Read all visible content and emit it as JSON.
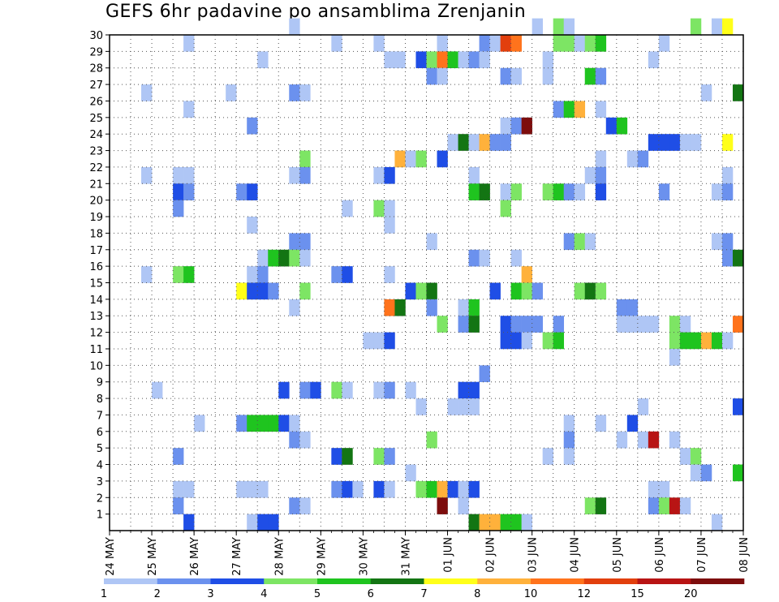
{
  "chart_data": {
    "type": "heatmap",
    "title": "GEFS 6hr padavine po ansamblima Zrenjanin",
    "xlabel": "",
    "ylabel": "",
    "y_range": [
      0,
      30
    ],
    "y_ticks": [
      1,
      2,
      3,
      4,
      5,
      6,
      7,
      8,
      9,
      10,
      11,
      12,
      13,
      14,
      15,
      16,
      17,
      18,
      19,
      20,
      21,
      22,
      23,
      24,
      25,
      26,
      27,
      28,
      29,
      30
    ],
    "x_range_steps": [
      0,
      60
    ],
    "x_step": "6 hr",
    "x_ticks": [
      {
        "step": 0,
        "label": "24 MAY"
      },
      {
        "step": 4,
        "label": "25 MAY"
      },
      {
        "step": 8,
        "label": "26 MAY"
      },
      {
        "step": 12,
        "label": "27 MAY"
      },
      {
        "step": 16,
        "label": "28 MAY"
      },
      {
        "step": 20,
        "label": "29 MAY"
      },
      {
        "step": 24,
        "label": "30 MAY"
      },
      {
        "step": 28,
        "label": "31 MAY"
      },
      {
        "step": 32,
        "label": "01 JUN"
      },
      {
        "step": 36,
        "label": "02 JUN"
      },
      {
        "step": 40,
        "label": "03 JUN"
      },
      {
        "step": 44,
        "label": "04 JUN"
      },
      {
        "step": 48,
        "label": "05 JUN"
      },
      {
        "step": 52,
        "label": "06 JUN"
      },
      {
        "step": 56,
        "label": "07 JUN"
      },
      {
        "step": 60,
        "label": "08 JUN"
      }
    ],
    "color_levels": [
      1,
      2,
      3,
      4,
      5,
      6,
      7,
      8,
      10,
      12,
      15,
      20
    ],
    "colorbar_labels": [
      "1",
      "2",
      "3",
      "4",
      "5",
      "6",
      "7",
      "8",
      "10",
      "12",
      "15",
      "20"
    ],
    "colors": [
      "#afc6f5",
      "#6b91ee",
      "#1f4ee6",
      "#7de564",
      "#1fc41f",
      "#137513",
      "#ffff19",
      "#ffb13b",
      "#ff731c",
      "#e23f0d",
      "#b81414",
      "#7d0d0d"
    ],
    "cells": [
      [
        30,
        17,
        0
      ],
      [
        30,
        40,
        0
      ],
      [
        30,
        42,
        3
      ],
      [
        30,
        43,
        0
      ],
      [
        30,
        55,
        3
      ],
      [
        30,
        57,
        0
      ],
      [
        30,
        58,
        6
      ],
      [
        29,
        7,
        0
      ],
      [
        29,
        21,
        0
      ],
      [
        29,
        25,
        0
      ],
      [
        29,
        31,
        0
      ],
      [
        29,
        35,
        1
      ],
      [
        29,
        36,
        0
      ],
      [
        29,
        37,
        9
      ],
      [
        29,
        38,
        8
      ],
      [
        29,
        42,
        3
      ],
      [
        29,
        43,
        3
      ],
      [
        29,
        44,
        0
      ],
      [
        29,
        45,
        3
      ],
      [
        29,
        46,
        4
      ],
      [
        29,
        52,
        0
      ],
      [
        28,
        14,
        0
      ],
      [
        28,
        26,
        0
      ],
      [
        28,
        27,
        0
      ],
      [
        28,
        29,
        2
      ],
      [
        28,
        30,
        3
      ],
      [
        28,
        31,
        8
      ],
      [
        28,
        32,
        4
      ],
      [
        28,
        33,
        0
      ],
      [
        28,
        34,
        1
      ],
      [
        28,
        35,
        0
      ],
      [
        28,
        41,
        0
      ],
      [
        28,
        51,
        0
      ],
      [
        27,
        30,
        1
      ],
      [
        27,
        31,
        0
      ],
      [
        27,
        37,
        1
      ],
      [
        27,
        38,
        0
      ],
      [
        27,
        41,
        0
      ],
      [
        27,
        45,
        4
      ],
      [
        27,
        46,
        1
      ],
      [
        26,
        3,
        0
      ],
      [
        26,
        11,
        0
      ],
      [
        26,
        17,
        1
      ],
      [
        26,
        18,
        0
      ],
      [
        26,
        56,
        0
      ],
      [
        26,
        59,
        5
      ],
      [
        25,
        7,
        0
      ],
      [
        25,
        42,
        1
      ],
      [
        25,
        43,
        4
      ],
      [
        25,
        44,
        7
      ],
      [
        25,
        46,
        0
      ],
      [
        24,
        13,
        1
      ],
      [
        24,
        37,
        0
      ],
      [
        24,
        38,
        1
      ],
      [
        24,
        39,
        11
      ],
      [
        24,
        47,
        2
      ],
      [
        24,
        48,
        4
      ],
      [
        23,
        32,
        0
      ],
      [
        23,
        33,
        5
      ],
      [
        23,
        34,
        0
      ],
      [
        23,
        35,
        7
      ],
      [
        23,
        36,
        1
      ],
      [
        23,
        37,
        1
      ],
      [
        23,
        51,
        2
      ],
      [
        23,
        52,
        2
      ],
      [
        23,
        53,
        2
      ],
      [
        23,
        54,
        0
      ],
      [
        23,
        55,
        0
      ],
      [
        23,
        58,
        6
      ],
      [
        22,
        18,
        3
      ],
      [
        22,
        27,
        7
      ],
      [
        22,
        28,
        0
      ],
      [
        22,
        29,
        3
      ],
      [
        22,
        31,
        2
      ],
      [
        22,
        46,
        0
      ],
      [
        22,
        49,
        0
      ],
      [
        22,
        50,
        1
      ],
      [
        21,
        3,
        0
      ],
      [
        21,
        6,
        0
      ],
      [
        21,
        7,
        0
      ],
      [
        21,
        17,
        0
      ],
      [
        21,
        18,
        1
      ],
      [
        21,
        25,
        0
      ],
      [
        21,
        26,
        2
      ],
      [
        21,
        34,
        0
      ],
      [
        21,
        45,
        0
      ],
      [
        21,
        46,
        1
      ],
      [
        21,
        58,
        0
      ],
      [
        20,
        6,
        2
      ],
      [
        20,
        7,
        1
      ],
      [
        20,
        12,
        1
      ],
      [
        20,
        13,
        2
      ],
      [
        20,
        34,
        4
      ],
      [
        20,
        35,
        5
      ],
      [
        20,
        37,
        0
      ],
      [
        20,
        38,
        3
      ],
      [
        20,
        41,
        3
      ],
      [
        20,
        42,
        4
      ],
      [
        20,
        43,
        1
      ],
      [
        20,
        44,
        0
      ],
      [
        20,
        46,
        2
      ],
      [
        20,
        52,
        1
      ],
      [
        20,
        57,
        0
      ],
      [
        20,
        58,
        1
      ],
      [
        19,
        6,
        1
      ],
      [
        19,
        22,
        0
      ],
      [
        19,
        25,
        3
      ],
      [
        19,
        26,
        0
      ],
      [
        19,
        37,
        3
      ],
      [
        18,
        13,
        0
      ],
      [
        18,
        26,
        0
      ],
      [
        17,
        17,
        1
      ],
      [
        17,
        18,
        1
      ],
      [
        17,
        30,
        0
      ],
      [
        17,
        43,
        1
      ],
      [
        17,
        44,
        3
      ],
      [
        17,
        45,
        0
      ],
      [
        17,
        57,
        0
      ],
      [
        17,
        58,
        1
      ],
      [
        16,
        14,
        0
      ],
      [
        16,
        15,
        4
      ],
      [
        16,
        16,
        5
      ],
      [
        16,
        17,
        3
      ],
      [
        16,
        18,
        0
      ],
      [
        16,
        34,
        1
      ],
      [
        16,
        35,
        0
      ],
      [
        16,
        38,
        0
      ],
      [
        16,
        58,
        1
      ],
      [
        16,
        59,
        5
      ],
      [
        15,
        3,
        0
      ],
      [
        15,
        6,
        3
      ],
      [
        15,
        7,
        4
      ],
      [
        15,
        13,
        0
      ],
      [
        15,
        14,
        1
      ],
      [
        15,
        21,
        1
      ],
      [
        15,
        22,
        2
      ],
      [
        15,
        26,
        0
      ],
      [
        15,
        39,
        7
      ],
      [
        14,
        12,
        6
      ],
      [
        14,
        13,
        2
      ],
      [
        14,
        14,
        2
      ],
      [
        14,
        15,
        1
      ],
      [
        14,
        18,
        3
      ],
      [
        14,
        28,
        2
      ],
      [
        14,
        29,
        3
      ],
      [
        14,
        30,
        5
      ],
      [
        14,
        36,
        2
      ],
      [
        14,
        38,
        4
      ],
      [
        14,
        39,
        3
      ],
      [
        14,
        40,
        1
      ],
      [
        14,
        44,
        3
      ],
      [
        14,
        45,
        5
      ],
      [
        14,
        46,
        3
      ],
      [
        13,
        17,
        0
      ],
      [
        13,
        26,
        8
      ],
      [
        13,
        27,
        5
      ],
      [
        13,
        30,
        1
      ],
      [
        13,
        33,
        0
      ],
      [
        13,
        34,
        4
      ],
      [
        13,
        48,
        1
      ],
      [
        13,
        49,
        1
      ],
      [
        12,
        31,
        3
      ],
      [
        12,
        33,
        1
      ],
      [
        12,
        34,
        5
      ],
      [
        12,
        37,
        2
      ],
      [
        12,
        38,
        1
      ],
      [
        12,
        39,
        1
      ],
      [
        12,
        40,
        1
      ],
      [
        12,
        42,
        1
      ],
      [
        12,
        48,
        0
      ],
      [
        12,
        49,
        0
      ],
      [
        12,
        50,
        0
      ],
      [
        12,
        51,
        0
      ],
      [
        12,
        53,
        3
      ],
      [
        12,
        54,
        0
      ],
      [
        12,
        59,
        8
      ],
      [
        11,
        24,
        0
      ],
      [
        11,
        25,
        0
      ],
      [
        11,
        26,
        2
      ],
      [
        11,
        37,
        2
      ],
      [
        11,
        38,
        2
      ],
      [
        11,
        39,
        0
      ],
      [
        11,
        41,
        3
      ],
      [
        11,
        42,
        4
      ],
      [
        11,
        53,
        3
      ],
      [
        11,
        54,
        4
      ],
      [
        11,
        55,
        4
      ],
      [
        11,
        56,
        7
      ],
      [
        11,
        57,
        4
      ],
      [
        11,
        58,
        0
      ],
      [
        10,
        53,
        0
      ],
      [
        9,
        35,
        1
      ],
      [
        8,
        4,
        0
      ],
      [
        8,
        16,
        2
      ],
      [
        8,
        18,
        1
      ],
      [
        8,
        19,
        2
      ],
      [
        8,
        21,
        3
      ],
      [
        8,
        22,
        0
      ],
      [
        8,
        25,
        0
      ],
      [
        8,
        26,
        1
      ],
      [
        8,
        28,
        0
      ],
      [
        8,
        33,
        2
      ],
      [
        8,
        34,
        2
      ],
      [
        7,
        29,
        0
      ],
      [
        7,
        32,
        0
      ],
      [
        7,
        33,
        0
      ],
      [
        7,
        34,
        0
      ],
      [
        7,
        50,
        0
      ],
      [
        7,
        59,
        2
      ],
      [
        6,
        8,
        0
      ],
      [
        6,
        12,
        1
      ],
      [
        6,
        13,
        4
      ],
      [
        6,
        14,
        4
      ],
      [
        6,
        15,
        4
      ],
      [
        6,
        16,
        2
      ],
      [
        6,
        17,
        0
      ],
      [
        6,
        43,
        0
      ],
      [
        6,
        46,
        0
      ],
      [
        6,
        49,
        2
      ],
      [
        5,
        17,
        1
      ],
      [
        5,
        18,
        0
      ],
      [
        5,
        30,
        3
      ],
      [
        5,
        43,
        1
      ],
      [
        5,
        48,
        0
      ],
      [
        5,
        50,
        0
      ],
      [
        5,
        51,
        10
      ],
      [
        5,
        53,
        0
      ],
      [
        4,
        6,
        1
      ],
      [
        4,
        21,
        2
      ],
      [
        4,
        22,
        5
      ],
      [
        4,
        25,
        3
      ],
      [
        4,
        26,
        1
      ],
      [
        4,
        41,
        0
      ],
      [
        4,
        43,
        0
      ],
      [
        4,
        54,
        0
      ],
      [
        4,
        55,
        3
      ],
      [
        3,
        28,
        0
      ],
      [
        3,
        55,
        0
      ],
      [
        3,
        56,
        1
      ],
      [
        3,
        59,
        4
      ],
      [
        2,
        6,
        0
      ],
      [
        2,
        7,
        0
      ],
      [
        2,
        12,
        0
      ],
      [
        2,
        13,
        0
      ],
      [
        2,
        14,
        0
      ],
      [
        2,
        21,
        1
      ],
      [
        2,
        22,
        2
      ],
      [
        2,
        23,
        0
      ],
      [
        2,
        25,
        2
      ],
      [
        2,
        26,
        0
      ],
      [
        2,
        29,
        3
      ],
      [
        2,
        30,
        4
      ],
      [
        2,
        31,
        7
      ],
      [
        2,
        32,
        2
      ],
      [
        2,
        33,
        0
      ],
      [
        2,
        34,
        2
      ],
      [
        2,
        51,
        0
      ],
      [
        2,
        52,
        0
      ],
      [
        1,
        6,
        1
      ],
      [
        1,
        17,
        1
      ],
      [
        1,
        18,
        0
      ],
      [
        1,
        31,
        11
      ],
      [
        1,
        33,
        0
      ],
      [
        1,
        45,
        3
      ],
      [
        1,
        46,
        5
      ],
      [
        1,
        51,
        1
      ],
      [
        1,
        52,
        3
      ],
      [
        1,
        53,
        10
      ],
      [
        1,
        54,
        0
      ],
      [
        0,
        7,
        2
      ],
      [
        0,
        13,
        0
      ],
      [
        0,
        14,
        2
      ],
      [
        0,
        15,
        2
      ],
      [
        0,
        34,
        5
      ],
      [
        0,
        35,
        7
      ],
      [
        0,
        36,
        7
      ],
      [
        0,
        37,
        4
      ],
      [
        0,
        38,
        4
      ],
      [
        0,
        39,
        0
      ],
      [
        0,
        57,
        0
      ]
    ]
  }
}
